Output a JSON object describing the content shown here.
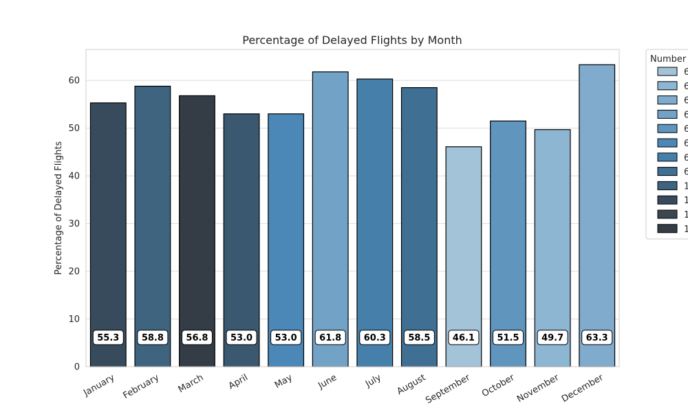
{
  "chart_data": {
    "type": "bar",
    "title": "Percentage of Delayed Flights by Month",
    "xlabel": "",
    "ylabel": "Percentage of Delayed Flights",
    "ylim": [
      0,
      66.5
    ],
    "yticks": [
      0,
      10,
      20,
      30,
      40,
      50,
      60
    ],
    "grid": true,
    "categories": [
      "January",
      "February",
      "March",
      "April",
      "May",
      "June",
      "July",
      "August",
      "September",
      "October",
      "November",
      "December"
    ],
    "values": [
      55.3,
      58.8,
      56.8,
      53.0,
      53.0,
      61.8,
      60.3,
      58.5,
      46.1,
      51.5,
      49.7,
      63.3
    ],
    "value_labels": [
      "55.3",
      "58.8",
      "56.8",
      "53.0",
      "53.0",
      "61.8",
      "60.3",
      "58.5",
      "46.1",
      "51.5",
      "49.7",
      "63.3"
    ],
    "bar_colors": [
      "#374b5c",
      "#3e6480",
      "#343d46",
      "#3a586f",
      "#4b87b7",
      "#72a3c6",
      "#467faa",
      "#3f6f92",
      "#a3c3d8",
      "#6095be",
      "#8db6d3",
      "#80abcc"
    ],
    "legend": {
      "title": "Number",
      "placement": "outside-right",
      "entries": [
        "6",
        "6",
        "6",
        "6",
        "6",
        "6",
        "6",
        "6",
        "1",
        "1",
        "1",
        "1"
      ],
      "colors": [
        "#a3c3d8",
        "#8db6d3",
        "#80abcc",
        "#72a3c6",
        "#6095be",
        "#4b87b7",
        "#467faa",
        "#3f6f92",
        "#3e6480",
        "#374b5c",
        "#3a4650",
        "#343d46"
      ]
    }
  }
}
